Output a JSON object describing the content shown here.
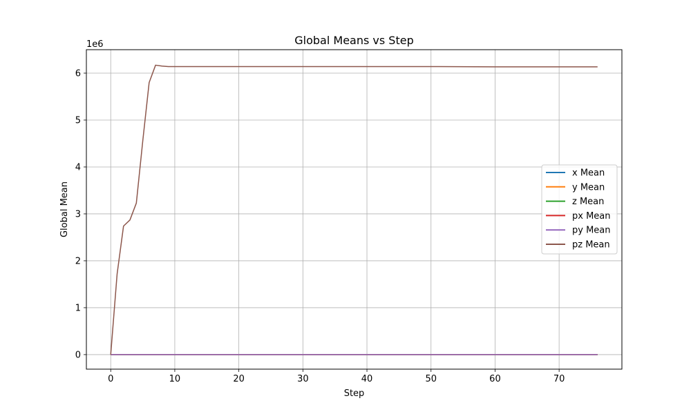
{
  "chart_data": {
    "type": "line",
    "title": "Global Means vs Step",
    "xlabel": "Step",
    "ylabel": "Global Mean",
    "y_scale_label": "1e6",
    "xlim": [
      -3.8,
      79.8
    ],
    "ylim": [
      -0.31,
      6.5
    ],
    "x_ticks": [
      0,
      10,
      20,
      30,
      40,
      50,
      60,
      70
    ],
    "y_ticks": [
      0,
      1,
      2,
      3,
      4,
      5,
      6
    ],
    "grid": true,
    "legend_position": "center-right",
    "series": [
      {
        "name": "x Mean",
        "color": "#1f77b4",
        "x": [
          0,
          76
        ],
        "y": [
          0,
          0
        ]
      },
      {
        "name": "y Mean",
        "color": "#ff7f0e",
        "x": [
          0,
          76
        ],
        "y": [
          0,
          0
        ]
      },
      {
        "name": "z Mean",
        "color": "#2ca02c",
        "x": [
          0,
          76
        ],
        "y": [
          0,
          0
        ]
      },
      {
        "name": "px Mean",
        "color": "#d62728",
        "x": [
          0,
          76
        ],
        "y": [
          0,
          0
        ]
      },
      {
        "name": "py Mean",
        "color": "#9467bd",
        "x": [
          0,
          76
        ],
        "y": [
          0,
          0
        ]
      },
      {
        "name": "pz Mean",
        "color": "#8c564b",
        "x": [
          0,
          1,
          2,
          3,
          4,
          5,
          6,
          7,
          8,
          9,
          10,
          20,
          30,
          40,
          50,
          60,
          70,
          76
        ],
        "y": [
          0,
          1.72,
          2.74,
          2.87,
          3.23,
          4.55,
          5.8,
          6.17,
          6.15,
          6.14,
          6.14,
          6.14,
          6.14,
          6.14,
          6.14,
          6.135,
          6.135,
          6.135
        ]
      }
    ]
  }
}
